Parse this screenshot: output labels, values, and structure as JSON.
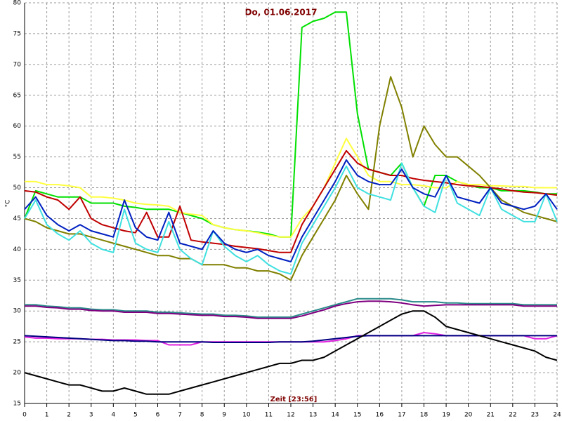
{
  "chart_data": {
    "type": "line",
    "title": "Do, 01.06.2017",
    "y_label": "°C",
    "x_label": "Zeit [23:56]",
    "x": [
      0,
      0.5,
      1,
      1.5,
      2,
      2.5,
      3,
      3.5,
      4,
      4.5,
      5,
      5.5,
      6,
      6.5,
      7,
      7.5,
      8,
      8.5,
      9,
      9.5,
      10,
      10.5,
      11,
      11.5,
      12,
      12.5,
      13,
      13.5,
      14,
      14.5,
      15,
      15.5,
      16,
      16.5,
      17,
      17.5,
      18,
      18.5,
      19,
      19.5,
      20,
      20.5,
      21,
      21.5,
      22,
      22.5,
      23,
      23.5,
      24
    ],
    "xlim": [
      0,
      24
    ],
    "xticks": [
      0,
      1,
      2,
      3,
      4,
      5,
      6,
      7,
      8,
      9,
      10,
      11,
      12,
      13,
      14,
      15,
      16,
      17,
      18,
      19,
      20,
      21,
      22,
      23,
      24
    ],
    "ylim": [
      15,
      80
    ],
    "yticks": [
      15,
      20,
      25,
      30,
      35,
      40,
      45,
      50,
      55,
      60,
      65,
      70,
      75,
      80
    ],
    "grid": true,
    "series": [
      {
        "color": "#00e000",
        "values": [
          45,
          49.5,
          49,
          48.5,
          48.5,
          48.5,
          47.5,
          47.5,
          47.5,
          47,
          46.8,
          46.5,
          46.5,
          46.5,
          46,
          45.5,
          45,
          44,
          43.5,
          43.2,
          43,
          42.8,
          42.5,
          42,
          42,
          76,
          77,
          77.5,
          78.5,
          78.5,
          62,
          53,
          52.5,
          52,
          54,
          50,
          47,
          52,
          52,
          51,
          50.5,
          50,
          50,
          49.5,
          49.5,
          49.5,
          49.3,
          49,
          49
        ]
      },
      {
        "color": "#ffff40",
        "values": [
          51,
          51,
          50.5,
          50.5,
          50.3,
          50,
          48.5,
          48.5,
          48.3,
          48,
          47.5,
          47.3,
          47.2,
          47,
          46,
          45.7,
          45.5,
          44,
          43.5,
          43.2,
          43,
          42.7,
          42.3,
          42,
          42,
          45,
          47,
          50,
          54,
          58,
          55,
          52,
          51,
          51,
          50.5,
          50.5,
          50.3,
          50,
          50,
          51,
          50.5,
          50.5,
          50.3,
          50.3,
          50.2,
          50.2,
          50,
          50,
          50
        ]
      },
      {
        "color": "#808000",
        "values": [
          45,
          44.5,
          43.5,
          43,
          42.5,
          42.5,
          42,
          41.5,
          41,
          40.5,
          40,
          39.5,
          39,
          39,
          38.5,
          38.5,
          37.5,
          37.5,
          37.5,
          37,
          37,
          36.5,
          36.5,
          36,
          35,
          39,
          42,
          45,
          48,
          52,
          49,
          46.5,
          60,
          68,
          63,
          55,
          60,
          57,
          55,
          55,
          53.5,
          52,
          50,
          48,
          47,
          46,
          45.5,
          45,
          44.5
        ]
      },
      {
        "color": "#c00000",
        "values": [
          49.5,
          49.3,
          48.5,
          48,
          46.5,
          48.5,
          45,
          44,
          43.5,
          43,
          42.7,
          46,
          42,
          42,
          47,
          41.5,
          41.2,
          41,
          40.8,
          40.5,
          40.3,
          40.1,
          39.8,
          39.5,
          39.5,
          44,
          47,
          50,
          53,
          56,
          54,
          53,
          52.5,
          52,
          52,
          51.5,
          51.2,
          51,
          50.8,
          50.5,
          50.3,
          50.2,
          50,
          49.8,
          49.5,
          49.3,
          49.2,
          49,
          48.8
        ]
      },
      {
        "color": "#40e0e0",
        "values": [
          45,
          48,
          44,
          42.5,
          41.5,
          43,
          41,
          40,
          39.5,
          46.5,
          41,
          40,
          39.5,
          44.5,
          40,
          38.5,
          37.5,
          43,
          40.5,
          39,
          38,
          39,
          37.5,
          36.5,
          36,
          41,
          44,
          47,
          50,
          53.5,
          50,
          49,
          48.5,
          48,
          54,
          50,
          47,
          46,
          52,
          47.5,
          46.5,
          45.5,
          50,
          46.5,
          45.5,
          44.5,
          44.5,
          49,
          44.5
        ]
      },
      {
        "color": "#0020c0",
        "values": [
          46.5,
          48.5,
          45.5,
          44,
          43,
          44,
          43,
          42.5,
          42,
          48,
          43.5,
          42,
          41.5,
          46,
          41,
          40.5,
          40,
          43,
          41,
          40,
          39.5,
          40,
          39,
          38.5,
          38,
          42,
          45,
          48,
          51,
          54.5,
          52,
          51,
          50.5,
          50.5,
          53,
          50,
          49,
          48.5,
          52,
          48.5,
          48,
          47.5,
          50,
          47.5,
          47,
          46.5,
          47,
          49,
          46.5
        ]
      },
      {
        "color": "#2a8a8a",
        "values": [
          31,
          31,
          30.8,
          30.7,
          30.5,
          30.5,
          30.3,
          30.2,
          30.2,
          30,
          30,
          30,
          29.8,
          29.8,
          29.7,
          29.6,
          29.5,
          29.5,
          29.3,
          29.3,
          29.2,
          29,
          29,
          29,
          29,
          29.5,
          30,
          30.5,
          31,
          31.5,
          32,
          32,
          32,
          32,
          31.8,
          31.5,
          31.5,
          31.5,
          31.3,
          31.3,
          31.2,
          31.2,
          31.2,
          31.2,
          31.2,
          31,
          31,
          31,
          31
        ]
      },
      {
        "color": "#800080",
        "values": [
          30.8,
          30.8,
          30.6,
          30.5,
          30.3,
          30.3,
          30.1,
          30,
          30,
          29.8,
          29.8,
          29.8,
          29.6,
          29.6,
          29.5,
          29.4,
          29.3,
          29.3,
          29.1,
          29.1,
          29,
          28.8,
          28.8,
          28.8,
          28.8,
          29.2,
          29.7,
          30.2,
          30.8,
          31.2,
          31.5,
          31.6,
          31.6,
          31.5,
          31.3,
          31,
          30.8,
          30.9,
          31,
          31,
          31,
          31,
          31,
          31,
          31,
          30.8,
          30.8,
          30.8,
          30.8
        ]
      },
      {
        "color": "#e020e0",
        "values": [
          25.8,
          25.6,
          25.6,
          25.5,
          25.5,
          25.5,
          25.4,
          25.4,
          25.3,
          25.3,
          25.3,
          25.2,
          25.2,
          24.5,
          24.5,
          24.5,
          25,
          25,
          25,
          25,
          25,
          25,
          25,
          25,
          25,
          25,
          25,
          25,
          25.2,
          25.5,
          26,
          26,
          26,
          26,
          26,
          26,
          26.5,
          26.3,
          26,
          26,
          26,
          26,
          26,
          26,
          26,
          26,
          25.5,
          25.5,
          26
        ]
      },
      {
        "color": "#000080",
        "values": [
          26,
          25.9,
          25.8,
          25.7,
          25.6,
          25.5,
          25.4,
          25.3,
          25.2,
          25.2,
          25.1,
          25.1,
          25,
          25,
          25,
          25,
          25,
          24.9,
          24.9,
          24.9,
          24.9,
          24.9,
          24.9,
          25,
          25,
          25,
          25.1,
          25.3,
          25.5,
          25.7,
          25.9,
          26,
          26,
          26,
          26,
          26,
          26,
          26,
          26,
          26,
          26,
          26,
          26,
          26,
          26,
          26,
          26,
          26,
          26
        ]
      },
      {
        "color": "#000000",
        "values": [
          20,
          19.5,
          19,
          18.5,
          18,
          18,
          17.5,
          17,
          17,
          17.5,
          17,
          16.5,
          16.5,
          16.5,
          17,
          17.5,
          18,
          18.5,
          19,
          19.5,
          20,
          20.5,
          21,
          21.5,
          21.5,
          22,
          22,
          22.5,
          23.5,
          24.5,
          25.5,
          26.5,
          27.5,
          28.5,
          29.5,
          30,
          30,
          29,
          27.5,
          27,
          26.5,
          26,
          25.5,
          25,
          24.5,
          24,
          23.5,
          22.5,
          22
        ]
      }
    ]
  }
}
